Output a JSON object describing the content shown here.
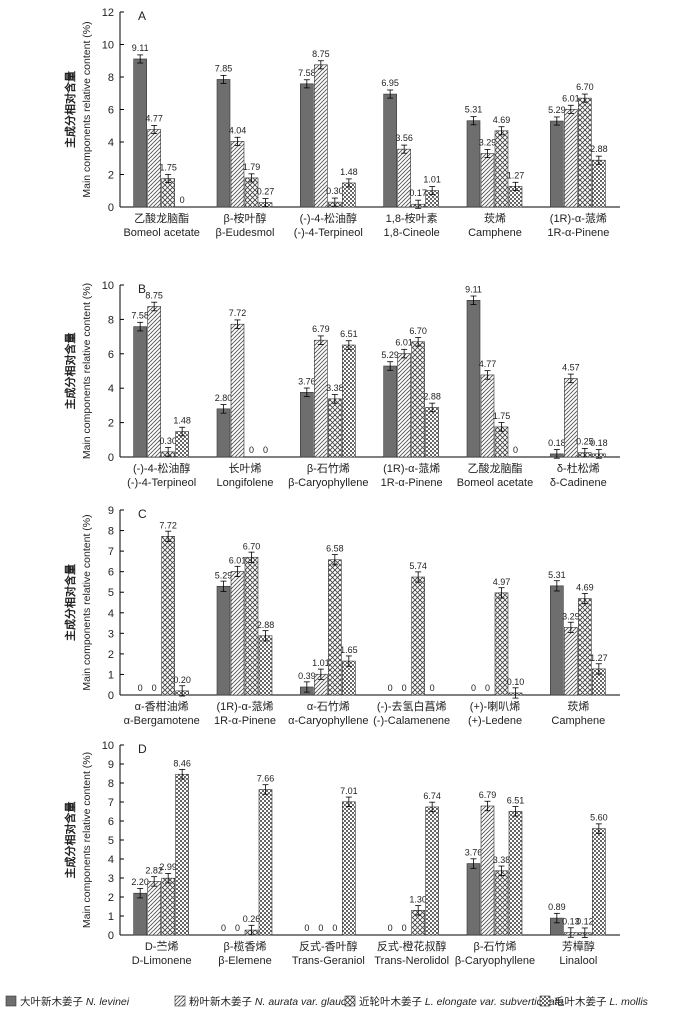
{
  "ylabel": "Main components relative content (%)",
  "ylabel_cn": "主成分相对含量",
  "legend": [
    {
      "cn": "大叶新木姜子",
      "latin": "N. levinei",
      "pattern": "solid"
    },
    {
      "cn": "粉叶新木姜子",
      "latin": "N. aurata var. glauce",
      "pattern": "lines"
    },
    {
      "cn": "近轮叶木姜子",
      "latin": "L. elongate var. subverticillata",
      "pattern": "cross"
    },
    {
      "cn": "毛叶木姜子",
      "latin": "L. mollis",
      "pattern": "check"
    }
  ],
  "chart_data": [
    {
      "panel": "A",
      "type": "bar",
      "ylim": [
        0,
        12
      ],
      "yticks": [
        0,
        2,
        4,
        6,
        8,
        10,
        12
      ],
      "categories_cn": [
        "乙酸龙脑酯",
        "β-桉叶醇",
        "(-)-4-松油醇",
        "1,8-桉叶素",
        "莰烯",
        "(1R)-α-蒎烯"
      ],
      "categories": [
        "Bomeol acetate",
        "β-Eudesmol",
        "(-)-4-Terpineol",
        "1,8-Cineole",
        "Camphene",
        "1R-α-Pinene"
      ],
      "series": [
        {
          "name": "N. levinei",
          "values": [
            9.11,
            7.85,
            7.58,
            6.95,
            5.31,
            5.29
          ],
          "labels": [
            "9.11",
            "7.85",
            "7.58",
            "6.95",
            "5.31",
            "5.29"
          ]
        },
        {
          "name": "N. aurata var. glauce",
          "values": [
            4.77,
            4.04,
            8.75,
            3.56,
            3.29,
            6.01
          ],
          "labels": [
            "4.77",
            "4.04",
            "8.75",
            "3.56",
            "3.29",
            "6.01"
          ]
        },
        {
          "name": "L. elongate var. subverticillata",
          "values": [
            1.75,
            1.79,
            0.3,
            0.17,
            4.69,
            6.7
          ],
          "labels": [
            "1.75",
            "1.79",
            "0.30",
            "0.17",
            "4.69",
            "6.70"
          ]
        },
        {
          "name": "L. mollis",
          "values": [
            0,
            0.27,
            1.48,
            1.01,
            1.27,
            2.88
          ],
          "labels": [
            "0",
            "0.27",
            "1.48",
            "1.01",
            "1.27",
            "2.88"
          ]
        }
      ]
    },
    {
      "panel": "B",
      "type": "bar",
      "ylim": [
        0,
        10
      ],
      "yticks": [
        0,
        2,
        4,
        6,
        8,
        10
      ],
      "categories_cn": [
        "(-)-4-松油醇",
        "长叶烯",
        "β-石竹烯",
        "(1R)-α-蒎烯",
        "乙酸龙脑酯",
        "δ-杜松烯"
      ],
      "categories": [
        "(-)-4-Terpineol",
        "Longifolene",
        "β-Caryophyllene",
        "1R-α-Pinene",
        "Bomeol acetate",
        "δ-Cadinene"
      ],
      "series": [
        {
          "name": "N. levinei",
          "values": [
            7.58,
            2.8,
            3.76,
            5.29,
            9.11,
            0.18
          ],
          "labels": [
            "7.58",
            "2.80",
            "3.76",
            "5.29",
            "9.11",
            "0.18"
          ]
        },
        {
          "name": "N. aurata var. glauce",
          "values": [
            8.75,
            7.72,
            6.79,
            6.01,
            4.77,
            4.57
          ],
          "labels": [
            "8.75",
            "7.72",
            "6.79",
            "6.01",
            "4.77",
            "4.57"
          ]
        },
        {
          "name": "L. elongate var. subverticillata",
          "values": [
            0.3,
            0,
            3.38,
            6.7,
            1.75,
            0.25
          ],
          "labels": [
            "0.30",
            "0",
            "3.38",
            "6.70",
            "1.75",
            "0.25"
          ]
        },
        {
          "name": "L. mollis",
          "values": [
            1.48,
            0,
            6.51,
            2.88,
            0,
            0.18
          ],
          "labels": [
            "1.48",
            "0",
            "6.51",
            "2.88",
            "0",
            "0.18"
          ]
        }
      ]
    },
    {
      "panel": "C",
      "type": "bar",
      "ylim": [
        0,
        9
      ],
      "yticks": [
        0,
        1,
        2,
        3,
        4,
        5,
        6,
        7,
        8,
        9
      ],
      "categories_cn": [
        "α-香柑油烯",
        "(1R)-α-蒎烯",
        "α-石竹烯",
        "(-)-去氢白菖烯",
        "(+)-喇叭烯",
        "莰烯"
      ],
      "categories": [
        "α-Bergamotene",
        "1R-α-Pinene",
        "α-Caryophyllene",
        "(-)-Calamenene",
        "(+)-Ledene",
        "Camphene"
      ],
      "series": [
        {
          "name": "N. levinei",
          "values": [
            0,
            5.29,
            0.39,
            0,
            0,
            5.31
          ],
          "labels": [
            "0",
            "5.29",
            "0.39",
            "0",
            "0",
            "5.31"
          ]
        },
        {
          "name": "N. aurata var. glauce",
          "values": [
            0,
            6.01,
            1.01,
            0,
            0,
            3.29
          ],
          "labels": [
            "0",
            "6.01",
            "1.01",
            "0",
            "0",
            "3.29"
          ]
        },
        {
          "name": "L. elongate var. subverticillata",
          "values": [
            7.72,
            6.7,
            6.58,
            5.74,
            4.97,
            4.69
          ],
          "labels": [
            "7.72",
            "6.70",
            "6.58",
            "5.74",
            "4.97",
            "4.69"
          ]
        },
        {
          "name": "L. mollis",
          "values": [
            0.2,
            2.88,
            1.65,
            0,
            0.1,
            1.27
          ],
          "labels": [
            "0.20",
            "2.88",
            "1.65",
            "0",
            "0.10",
            "1.27"
          ]
        }
      ]
    },
    {
      "panel": "D",
      "type": "bar",
      "ylim": [
        0,
        10
      ],
      "yticks": [
        0,
        1,
        2,
        3,
        4,
        5,
        6,
        7,
        8,
        9,
        10
      ],
      "categories_cn": [
        "D-苎烯",
        "β-榄香烯",
        "反式-香叶醇",
        "反式-橙花叔醇",
        "β-石竹烯",
        "芳樟醇"
      ],
      "categories": [
        "D-Limonene",
        "β-Elemene",
        "Trans-Geraniol",
        "Trans-Nerolidol",
        "β-Caryophyllene",
        "Linalool"
      ],
      "series": [
        {
          "name": "N. levinei",
          "values": [
            2.2,
            0,
            0,
            0,
            3.76,
            0.89
          ],
          "labels": [
            "2.20",
            "0",
            "0",
            "0",
            "3.76",
            "0.89"
          ]
        },
        {
          "name": "N. aurata var. glauce",
          "values": [
            2.82,
            0,
            0,
            0,
            6.79,
            0.13
          ],
          "labels": [
            "2.82",
            "0",
            "0",
            "0",
            "6.79",
            "0.13"
          ]
        },
        {
          "name": "L. elongate var. subverticillata",
          "values": [
            2.99,
            0.26,
            0,
            1.3,
            3.38,
            0.12
          ],
          "labels": [
            "2.99",
            "0.26",
            "0",
            "1.30",
            "3.38",
            "0.12"
          ]
        },
        {
          "name": "L. mollis",
          "values": [
            8.46,
            7.66,
            7.01,
            6.74,
            6.51,
            5.6
          ],
          "labels": [
            "8.46",
            "7.66",
            "7.01",
            "6.74",
            "6.51",
            "5.60"
          ]
        }
      ]
    }
  ]
}
